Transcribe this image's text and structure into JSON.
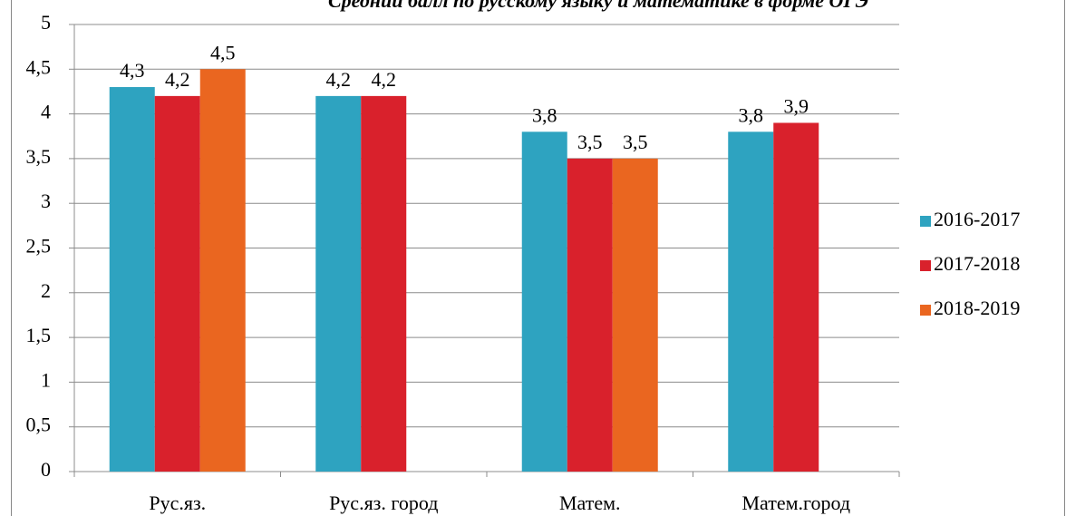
{
  "chart_data": {
    "type": "bar",
    "title": "Средний балл по русскому языку и математике в форме ОГЭ",
    "categories": [
      "Рус.яз.",
      "Рус.яз. город",
      "Матем.",
      "Матем.город"
    ],
    "series": [
      {
        "name": "2016-2017",
        "color": "#2ea3c0",
        "values": [
          4.3,
          4.2,
          3.8,
          3.8
        ],
        "value_labels": [
          "4,3",
          "4,2",
          "3,8",
          "3,8"
        ]
      },
      {
        "name": "2017-2018",
        "color": "#d9212c",
        "values": [
          4.2,
          4.2,
          3.5,
          3.9
        ],
        "value_labels": [
          "4,2",
          "4,2",
          "3,5",
          "3,9"
        ]
      },
      {
        "name": "2018-2019",
        "color": "#ea6620",
        "values": [
          4.5,
          null,
          3.5,
          null
        ],
        "value_labels": [
          "4,5",
          null,
          "3,5",
          null
        ]
      }
    ],
    "ylim": [
      0,
      5
    ],
    "yticks": [
      0,
      {
        "value": 0.5,
        "label": "0,5"
      },
      1,
      {
        "value": 1.5,
        "label": "1,5"
      },
      2,
      {
        "value": 2.5,
        "label": "2,5"
      },
      3,
      {
        "value": 3.5,
        "label": "3,5"
      },
      4,
      {
        "value": 4.5,
        "label": "4,5"
      },
      5
    ],
    "grid": true,
    "legend": "right"
  }
}
